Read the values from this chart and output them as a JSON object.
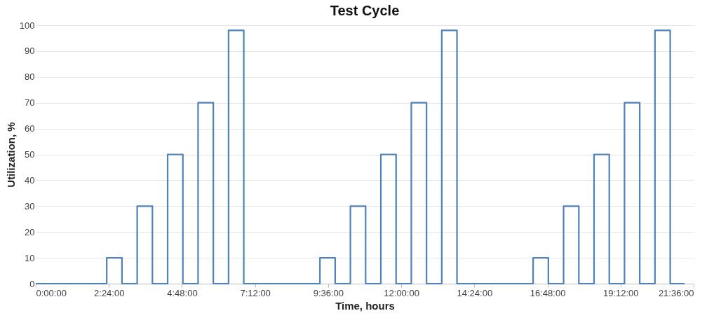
{
  "chart_data": {
    "type": "step",
    "title": "Test Cycle",
    "xlabel": "Time, hours",
    "ylabel": "Utilization, %",
    "x": [
      0,
      2.33,
      2.83,
      3.33,
      3.83,
      4.33,
      4.83,
      5.33,
      5.83,
      6.33,
      6.83,
      9.33,
      9.83,
      10.33,
      10.83,
      11.33,
      11.83,
      12.33,
      12.83,
      13.33,
      13.83,
      16.33,
      16.83,
      17.33,
      17.83,
      18.33,
      18.83,
      19.33,
      19.83,
      20.33,
      20.83,
      21.3
    ],
    "series": [
      {
        "color": "#4f81bd",
        "values": [
          0,
          10,
          0,
          30,
          0,
          50,
          0,
          70,
          0,
          98,
          0,
          10,
          0,
          30,
          0,
          50,
          0,
          70,
          0,
          98,
          0,
          10,
          0,
          30,
          0,
          50,
          0,
          70,
          0,
          98,
          0,
          0
        ]
      }
    ],
    "xlim": [
      0,
      21.6
    ],
    "xticks": [
      {
        "value": 0,
        "label": "0:00:00"
      },
      {
        "value": 2.4,
        "label": "2:24:00"
      },
      {
        "value": 4.8,
        "label": "4:48:00"
      },
      {
        "value": 7.2,
        "label": "7:12:00"
      },
      {
        "value": 9.6,
        "label": "9:36:00"
      },
      {
        "value": 12,
        "label": "12:00:00"
      },
      {
        "value": 14.4,
        "label": "14:24:00"
      },
      {
        "value": 16.8,
        "label": "16:48:00"
      },
      {
        "value": 19.2,
        "label": "19:12:00"
      },
      {
        "value": 21.6,
        "label": "21:36:00"
      }
    ],
    "ylim": [
      0,
      100
    ],
    "yticks": [
      0,
      10,
      20,
      30,
      40,
      50,
      60,
      70,
      80,
      90,
      100
    ],
    "grid": "y",
    "line_style": "solid",
    "marker": "none"
  }
}
